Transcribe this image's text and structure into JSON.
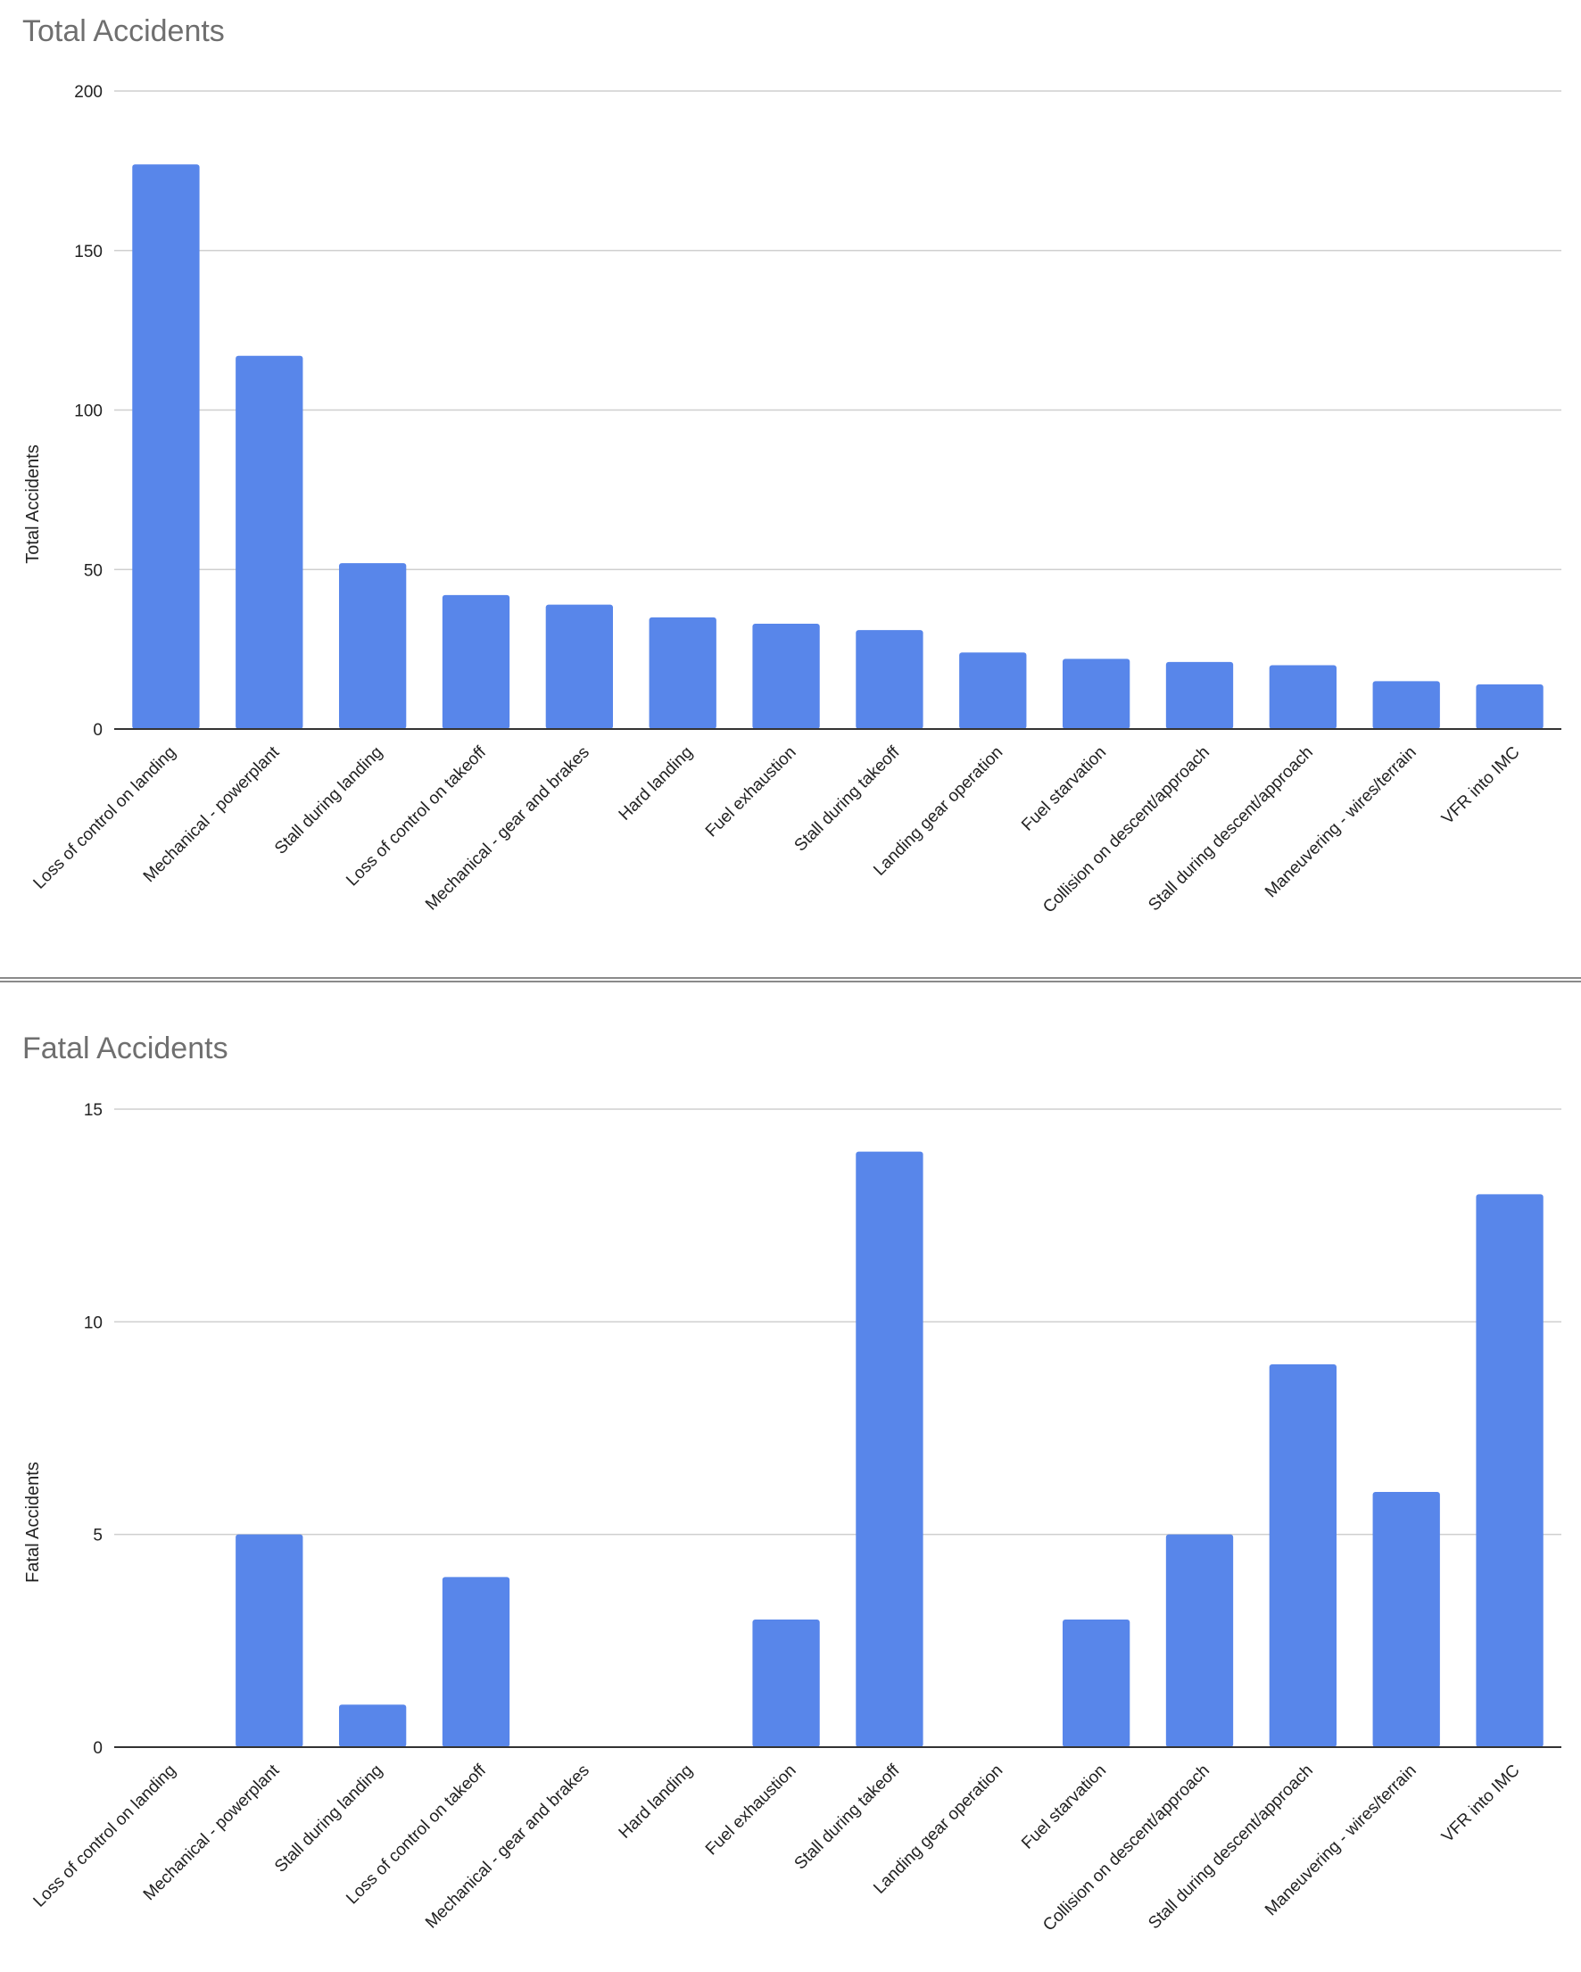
{
  "chart_data": [
    {
      "type": "bar",
      "title": "Total Accidents",
      "ylabel": "Total Accidents",
      "xlabel": "",
      "ylim": [
        0,
        200
      ],
      "yticks": [
        0,
        50,
        100,
        150,
        200
      ],
      "grid": true,
      "bar_color": "#5886ea",
      "categories": [
        "Loss of control on landing",
        "Mechanical - powerplant",
        "Stall during landing",
        "Loss of control on takeoff",
        "Mechanical - gear and brakes",
        "Hard landing",
        "Fuel exhaustion",
        "Stall during takeoff",
        "Landing gear operation",
        "Fuel starvation",
        "Collision on descent/approach",
        "Stall during descent/approach",
        "Maneuvering - wires/terrain",
        "VFR into IMC"
      ],
      "values": [
        177,
        117,
        52,
        42,
        39,
        35,
        33,
        31,
        24,
        22,
        21,
        20,
        15,
        14
      ]
    },
    {
      "type": "bar",
      "title": "Fatal Accidents",
      "ylabel": "Fatal Accidents",
      "xlabel": "",
      "ylim": [
        0,
        15
      ],
      "yticks": [
        0,
        5,
        10,
        15
      ],
      "grid": true,
      "bar_color": "#5886ea",
      "categories": [
        "Loss of control on landing",
        "Mechanical - powerplant",
        "Stall during landing",
        "Loss of control on takeoff",
        "Mechanical - gear and brakes",
        "Hard landing",
        "Fuel exhaustion",
        "Stall during takeoff",
        "Landing gear operation",
        "Fuel starvation",
        "Collision on descent/approach",
        "Stall during descent/approach",
        "Maneuvering - wires/terrain",
        "VFR into IMC"
      ],
      "values": [
        0,
        5,
        1,
        4,
        0,
        0,
        3,
        14,
        0,
        3,
        5,
        9,
        6,
        13
      ]
    }
  ]
}
